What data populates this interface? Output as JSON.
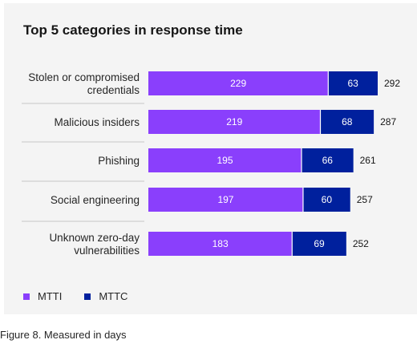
{
  "chart_data": {
    "type": "bar",
    "orientation": "horizontal",
    "stacked": true,
    "title": "Top 5 categories in response time",
    "categories": [
      [
        "Stolen or compromised",
        "credentials"
      ],
      [
        "Malicious insiders"
      ],
      [
        "Phishing"
      ],
      [
        "Social engineering"
      ],
      [
        "Unknown zero-day",
        "vulnerabilities"
      ]
    ],
    "series": [
      {
        "name": "MTTI",
        "color": "#8a3ffc",
        "values": [
          229,
          219,
          195,
          197,
          183
        ]
      },
      {
        "name": "MTTC",
        "color": "#00209d",
        "values": [
          63,
          68,
          66,
          60,
          69
        ]
      }
    ],
    "totals": [
      292,
      287,
      261,
      257,
      252
    ],
    "xlim": [
      0,
      292
    ],
    "legend_position": "bottom-left",
    "grid": false
  },
  "caption": "Figure 8. Measured in days"
}
